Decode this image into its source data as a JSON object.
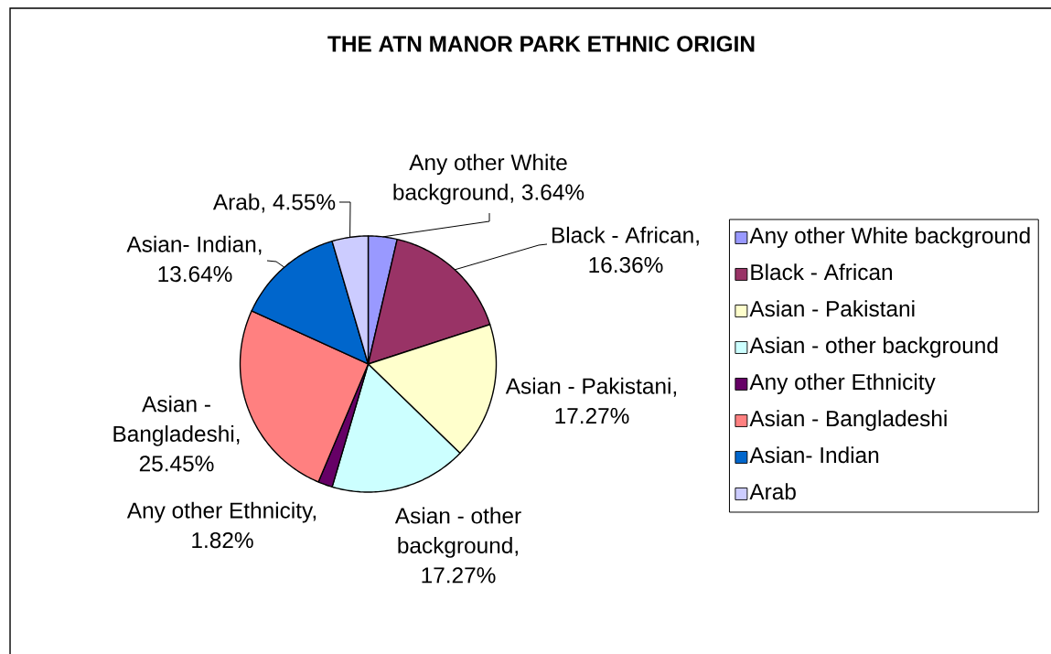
{
  "chart_data": {
    "type": "pie",
    "title": "THE ATN MANOR PARK ETHNIC ORIGIN",
    "categories": [
      "Any other White background",
      "Black - African",
      "Asian - Pakistani",
      "Asian - other background",
      "Any other Ethnicity",
      "Asian - Bangladeshi",
      "Asian- Indian",
      "Arab"
    ],
    "values": [
      3.64,
      16.36,
      17.27,
      17.27,
      1.82,
      25.45,
      13.64,
      4.55
    ],
    "colors": [
      "#9999ff",
      "#993366",
      "#ffffcc",
      "#ccffff",
      "#660066",
      "#ff8080",
      "#0066cc",
      "#ccccff"
    ],
    "value_labels": [
      "Any other White background, 3.64%",
      "Black - African, 16.36%",
      "Asian - Pakistani, 17.27%",
      "Asian - other background, 17.27%",
      "Any other Ethnicity, 1.82%",
      "Asian - Bangladeshi, 25.45%",
      "Asian- Indian, 13.64%",
      "Arab, 4.55%"
    ],
    "legend": "right"
  }
}
